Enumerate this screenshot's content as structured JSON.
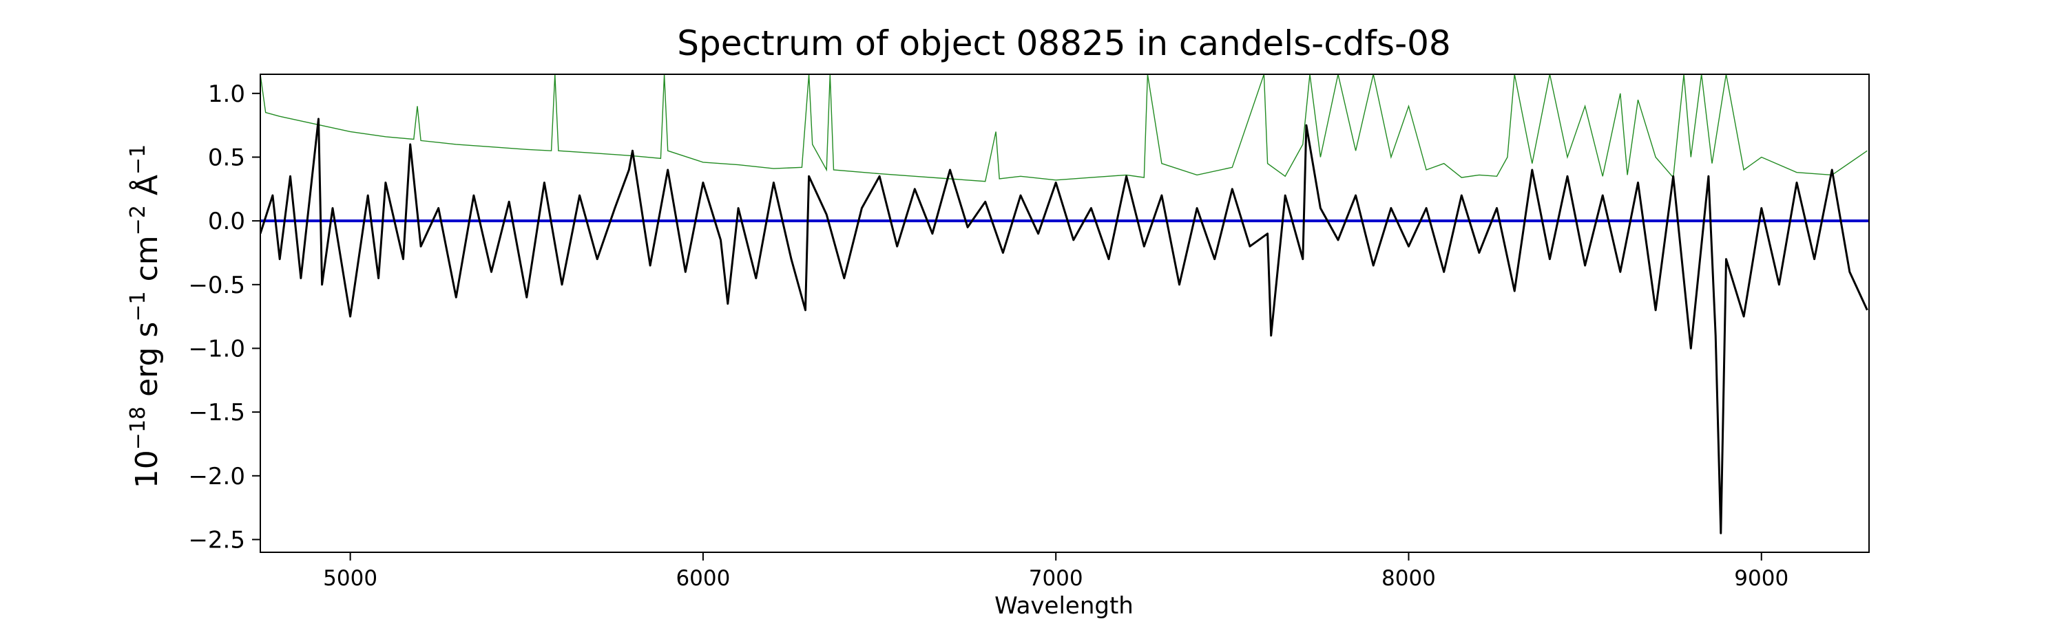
{
  "chart_data": {
    "type": "line",
    "title": "Spectrum of object 08825 in candels-cdfs-08",
    "xlabel": "Wavelength",
    "ylabel": {
      "base": "10",
      "exp1": "−18",
      "unit_erg": " erg s",
      "exp2": "−1",
      "unit_cm": " cm",
      "exp3": "−2",
      "unit_ang": " Å",
      "exp4": "−1"
    },
    "xlim": [
      4745,
      9305
    ],
    "ylim": [
      -2.6,
      1.15
    ],
    "x_ticks": [
      5000,
      6000,
      7000,
      8000,
      9000
    ],
    "x_tick_labels": [
      "5000",
      "6000",
      "7000",
      "8000",
      "9000"
    ],
    "y_ticks": [
      -2.5,
      -2.0,
      -1.5,
      -1.0,
      -0.5,
      0.0,
      0.5,
      1.0
    ],
    "y_tick_labels": [
      "−2.5",
      "−2.0",
      "−1.5",
      "−1.0",
      "−0.5",
      "0.0",
      "0.5",
      "1.0"
    ],
    "grid": false,
    "series": [
      {
        "role": "flux",
        "color": "#000000",
        "x": [
          4745,
          4780,
          4800,
          4830,
          4860,
          4910,
          4920,
          4950,
          5000,
          5050,
          5080,
          5100,
          5150,
          5170,
          5200,
          5250,
          5300,
          5350,
          5400,
          5450,
          5500,
          5550,
          5600,
          5650,
          5700,
          5750,
          5790,
          5800,
          5850,
          5900,
          5950,
          6000,
          6050,
          6070,
          6100,
          6150,
          6200,
          6250,
          6290,
          6300,
          6350,
          6400,
          6450,
          6500,
          6550,
          6600,
          6650,
          6700,
          6750,
          6800,
          6850,
          6900,
          6950,
          7000,
          7050,
          7100,
          7150,
          7200,
          7250,
          7300,
          7350,
          7400,
          7450,
          7500,
          7550,
          7600,
          7610,
          7650,
          7700,
          7710,
          7750,
          7800,
          7850,
          7900,
          7950,
          8000,
          8050,
          8100,
          8150,
          8200,
          8250,
          8300,
          8350,
          8400,
          8450,
          8500,
          8550,
          8600,
          8650,
          8700,
          8750,
          8800,
          8850,
          8870,
          8885,
          8900,
          8950,
          9000,
          9050,
          9100,
          9150,
          9200,
          9250,
          9300
        ],
        "y": [
          -0.1,
          0.2,
          -0.3,
          0.35,
          -0.45,
          0.8,
          -0.5,
          0.1,
          -0.75,
          0.2,
          -0.45,
          0.3,
          -0.3,
          0.6,
          -0.2,
          0.1,
          -0.6,
          0.2,
          -0.4,
          0.15,
          -0.6,
          0.3,
          -0.5,
          0.2,
          -0.3,
          0.1,
          0.4,
          0.55,
          -0.35,
          0.4,
          -0.4,
          0.3,
          -0.15,
          -0.65,
          0.1,
          -0.45,
          0.3,
          -0.3,
          -0.7,
          0.35,
          0.05,
          -0.45,
          0.1,
          0.35,
          -0.2,
          0.25,
          -0.1,
          0.4,
          -0.05,
          0.15,
          -0.25,
          0.2,
          -0.1,
          0.3,
          -0.15,
          0.1,
          -0.3,
          0.35,
          -0.2,
          0.2,
          -0.5,
          0.1,
          -0.3,
          0.25,
          -0.2,
          -0.1,
          -0.9,
          0.2,
          -0.3,
          0.75,
          0.1,
          -0.15,
          0.2,
          -0.35,
          0.1,
          -0.2,
          0.1,
          -0.4,
          0.2,
          -0.25,
          0.1,
          -0.55,
          0.4,
          -0.3,
          0.35,
          -0.35,
          0.2,
          -0.4,
          0.3,
          -0.7,
          0.35,
          -1.0,
          0.35,
          -0.9,
          -2.45,
          -0.3,
          -0.75,
          0.1,
          -0.5,
          0.3,
          -0.3,
          0.4,
          -0.4,
          -0.7
        ]
      },
      {
        "role": "model",
        "color": "#0000cc",
        "x": [
          4745,
          9305
        ],
        "y": [
          0.0,
          0.0
        ]
      },
      {
        "role": "error",
        "color": "#228b22",
        "x": [
          4745,
          4760,
          4800,
          4900,
          5000,
          5100,
          5180,
          5190,
          5200,
          5300,
          5400,
          5500,
          5570,
          5580,
          5590,
          5700,
          5800,
          5880,
          5890,
          5900,
          6000,
          6100,
          6200,
          6280,
          6300,
          6310,
          6350,
          6360,
          6370,
          6500,
          6600,
          6700,
          6800,
          6830,
          6840,
          6900,
          7000,
          7100,
          7200,
          7250,
          7260,
          7300,
          7400,
          7500,
          7590,
          7600,
          7650,
          7700,
          7720,
          7750,
          7800,
          7850,
          7900,
          7950,
          8000,
          8050,
          8100,
          8150,
          8200,
          8250,
          8280,
          8300,
          8350,
          8400,
          8450,
          8500,
          8550,
          8600,
          8620,
          8650,
          8700,
          8750,
          8780,
          8800,
          8830,
          8860,
          8900,
          8950,
          9000,
          9100,
          9200,
          9300
        ],
        "y": [
          1.15,
          0.85,
          0.82,
          0.76,
          0.7,
          0.66,
          0.64,
          0.9,
          0.63,
          0.6,
          0.58,
          0.56,
          0.55,
          1.15,
          0.55,
          0.53,
          0.51,
          0.49,
          1.15,
          0.55,
          0.46,
          0.44,
          0.41,
          0.42,
          1.15,
          0.6,
          0.4,
          1.15,
          0.4,
          0.37,
          0.35,
          0.33,
          0.31,
          0.7,
          0.33,
          0.35,
          0.32,
          0.34,
          0.36,
          0.34,
          1.15,
          0.45,
          0.36,
          0.42,
          1.15,
          0.45,
          0.35,
          0.6,
          1.15,
          0.5,
          1.15,
          0.55,
          1.15,
          0.5,
          0.9,
          0.4,
          0.45,
          0.34,
          0.36,
          0.35,
          0.5,
          1.15,
          0.45,
          1.15,
          0.5,
          0.9,
          0.35,
          1.0,
          0.36,
          0.95,
          0.5,
          0.34,
          1.15,
          0.5,
          1.15,
          0.45,
          1.15,
          0.4,
          0.5,
          0.38,
          0.36,
          0.55
        ]
      }
    ]
  }
}
